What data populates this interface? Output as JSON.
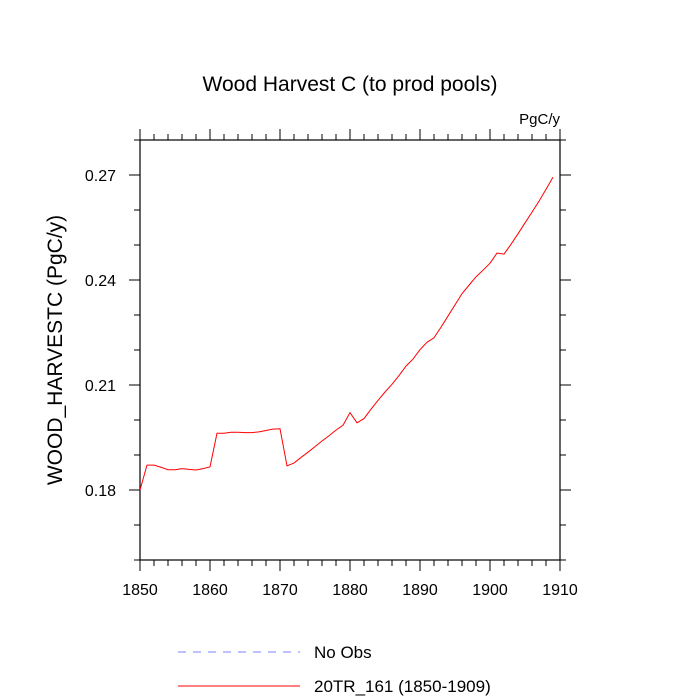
{
  "chart_data": {
    "type": "line",
    "title": "Wood Harvest C (to prod pools)",
    "units_label": "PgC/y",
    "xlabel": "",
    "ylabel": "WOOD_HARVESTC  (PgC/y)",
    "xlim": [
      1850,
      1910
    ],
    "ylim": [
      0.16,
      0.28
    ],
    "xticks": [
      1850,
      1860,
      1870,
      1880,
      1890,
      1900,
      1910
    ],
    "xtick_labels": [
      "1850",
      "1860",
      "1870",
      "1880",
      "1890",
      "1900",
      "1910"
    ],
    "xminor_step": 2,
    "yticks": [
      0.18,
      0.21,
      0.24,
      0.27
    ],
    "ytick_labels": [
      "0.18",
      "0.21",
      "0.24",
      "0.27"
    ],
    "yminor_step": 0.01,
    "grid": false,
    "legend_position": "bottom",
    "series": [
      {
        "name": "No Obs",
        "legend_label": "No Obs",
        "color": "#8080ff",
        "dash": true,
        "x": [],
        "values": []
      },
      {
        "name": "20TR_161 (1850-1909)",
        "legend_label": "20TR_161 (1850-1909)",
        "color": "#ff0000",
        "dash": false,
        "x": [
          1850,
          1851,
          1852,
          1853,
          1854,
          1855,
          1856,
          1857,
          1858,
          1859,
          1860,
          1861,
          1862,
          1863,
          1864,
          1865,
          1866,
          1867,
          1868,
          1869,
          1870,
          1871,
          1872,
          1873,
          1874,
          1875,
          1876,
          1877,
          1878,
          1879,
          1880,
          1881,
          1882,
          1883,
          1884,
          1885,
          1886,
          1887,
          1888,
          1889,
          1890,
          1891,
          1892,
          1893,
          1894,
          1895,
          1896,
          1897,
          1898,
          1899,
          1900,
          1901,
          1902,
          1903,
          1904,
          1905,
          1906,
          1907,
          1908,
          1909
        ],
        "values": [
          0.18,
          0.1871,
          0.1871,
          0.1865,
          0.1858,
          0.1858,
          0.1861,
          0.1859,
          0.1857,
          0.1861,
          0.1866,
          0.1962,
          0.1962,
          0.1965,
          0.1965,
          0.1964,
          0.1964,
          0.1966,
          0.197,
          0.1974,
          0.1975,
          0.1869,
          0.1877,
          0.1893,
          0.1908,
          0.1924,
          0.194,
          0.1955,
          0.1971,
          0.1985,
          0.2021,
          0.1992,
          0.2004,
          0.2031,
          0.2056,
          0.208,
          0.2102,
          0.2127,
          0.2154,
          0.2174,
          0.2201,
          0.2222,
          0.2235,
          0.2265,
          0.2297,
          0.2329,
          0.2361,
          0.2385,
          0.2409,
          0.2428,
          0.2448,
          0.2477,
          0.2474,
          0.2502,
          0.2532,
          0.2563,
          0.2594,
          0.2625,
          0.2659,
          0.2694
        ]
      }
    ]
  }
}
